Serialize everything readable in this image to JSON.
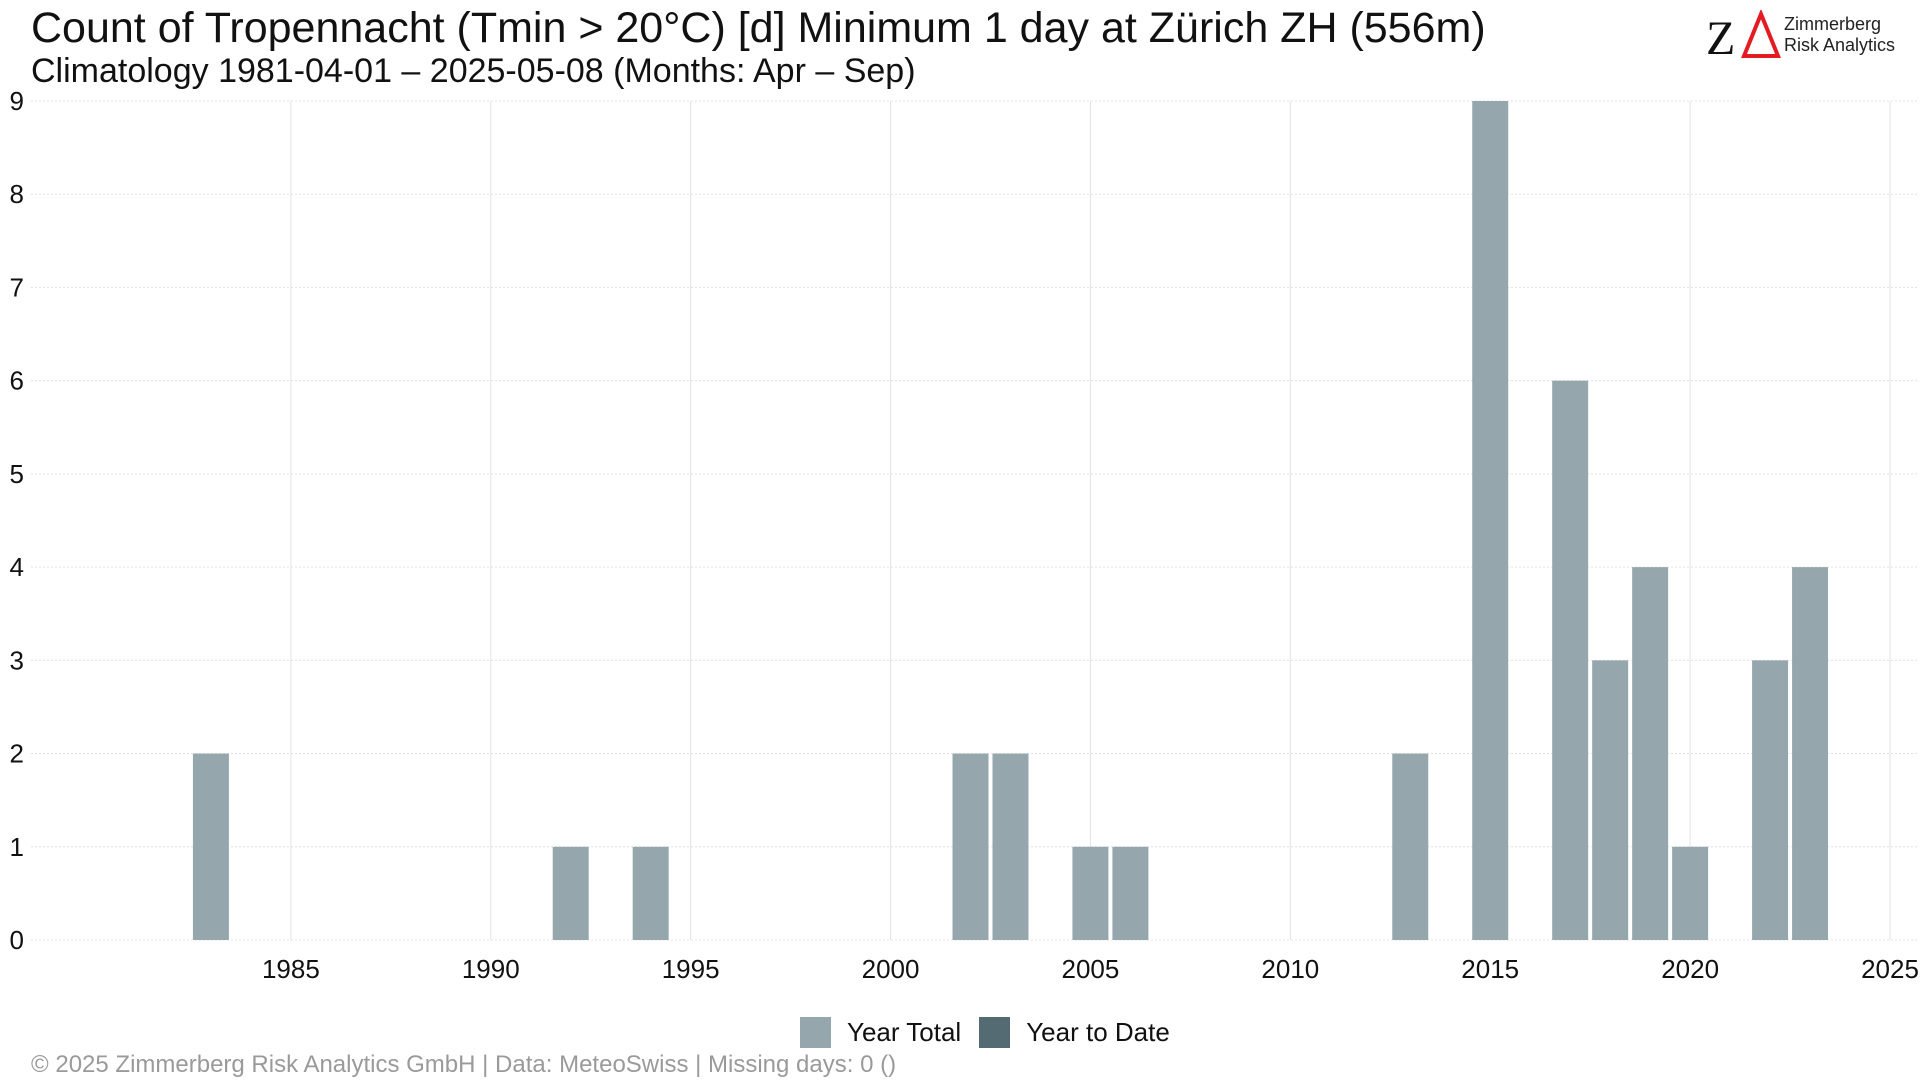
{
  "header": {
    "title": "Count of Tropennacht (Tmin > 20°C) [d] Minimum 1 day at Zürich  ZH (556m)",
    "subtitle": "Climatology 1981-04-01 – 2025-05-08 (Months: Apr – Sep)"
  },
  "logo": {
    "mark": "ZΔ",
    "line1": "Zimmerberg",
    "line2": "Risk Analytics",
    "z_color": "#111111",
    "delta_color": "#e31b23"
  },
  "footer": {
    "text": "©  2025 Zimmerberg Risk Analytics GmbH | Data: MeteoSwiss | Missing days: 0 ()"
  },
  "colors": {
    "year_total": "#95a7ad",
    "year_to_date": "#556b73",
    "grid": "#e3e3e3"
  },
  "chart_data": {
    "type": "bar",
    "title": "Count of Tropennacht (Tmin > 20°C) [d] Minimum 1 day at Zürich  ZH (556m)",
    "subtitle": "Climatology 1981-04-01 – 2025-05-08 (Months: Apr – Sep)",
    "xlabel": "",
    "ylabel": "",
    "xlim": [
      1978.5,
      2025.7
    ],
    "ylim": [
      0,
      9
    ],
    "x_ticks": [
      1985,
      1990,
      1995,
      2000,
      2005,
      2010,
      2015,
      2020,
      2025
    ],
    "y_ticks": [
      0,
      1,
      2,
      3,
      4,
      5,
      6,
      7,
      8,
      9
    ],
    "grid": true,
    "legend_position": "bottom",
    "series": [
      {
        "name": "Year Total",
        "color": "#95a7ad",
        "points": [
          {
            "x": 1983,
            "y": 2
          },
          {
            "x": 1992,
            "y": 1
          },
          {
            "x": 1994,
            "y": 1
          },
          {
            "x": 2002,
            "y": 2
          },
          {
            "x": 2003,
            "y": 2
          },
          {
            "x": 2005,
            "y": 1
          },
          {
            "x": 2006,
            "y": 1
          },
          {
            "x": 2013,
            "y": 2
          },
          {
            "x": 2015,
            "y": 9
          },
          {
            "x": 2017,
            "y": 6
          },
          {
            "x": 2018,
            "y": 3
          },
          {
            "x": 2019,
            "y": 4
          },
          {
            "x": 2020,
            "y": 1
          },
          {
            "x": 2022,
            "y": 3
          },
          {
            "x": 2023,
            "y": 4
          }
        ]
      },
      {
        "name": "Year to Date",
        "color": "#556b73",
        "points": []
      }
    ]
  }
}
